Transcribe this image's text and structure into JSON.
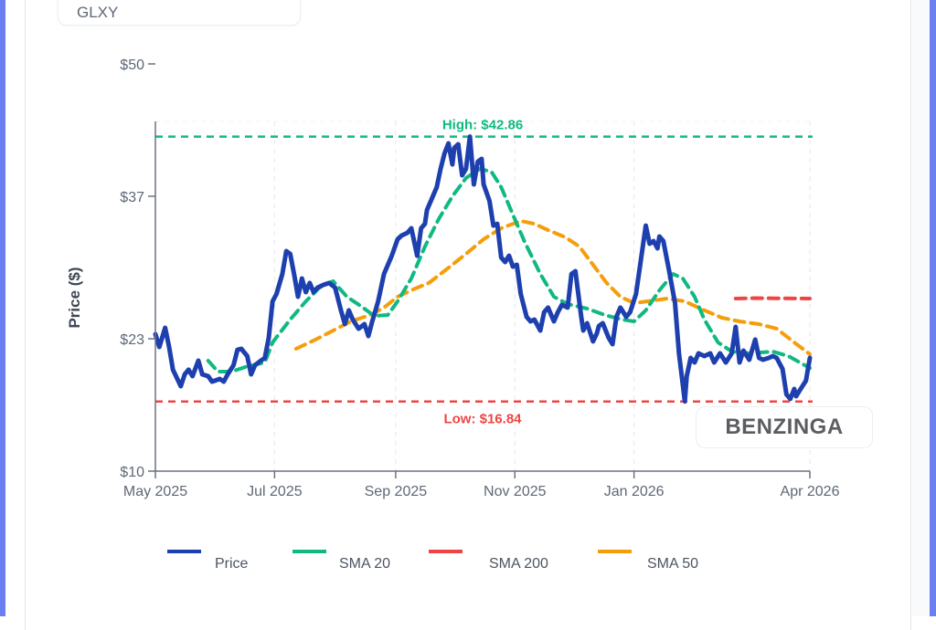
{
  "ticker": "GLXY",
  "watermark": "BENZINGA",
  "colors": {
    "price": "#1e40af",
    "sma20": "#10b981",
    "sma200": "#ef4444",
    "sma50": "#f59e0b",
    "high": "#10b981",
    "low": "#ef4444",
    "axis": "#6b7280",
    "text": "#5f6877"
  },
  "chart_data": {
    "type": "line",
    "title": "",
    "xlabel": "",
    "ylabel": "Price ($)",
    "ylim": [
      10,
      50
    ],
    "xlim": [
      "2025-05-01",
      "2026-04-01"
    ],
    "y_ticks": [
      {
        "value": 10,
        "label": "$10"
      },
      {
        "value": 23,
        "label": "$23"
      },
      {
        "value": 37,
        "label": "$37"
      },
      {
        "value": 50,
        "label": "$50"
      }
    ],
    "x_ticks": [
      {
        "date": "2025-05-01",
        "label": "May 2025"
      },
      {
        "date": "2025-07-01",
        "label": "Jul 2025"
      },
      {
        "date": "2025-09-01",
        "label": "Sep 2025"
      },
      {
        "date": "2025-11-01",
        "label": "Nov 2025"
      },
      {
        "date": "2026-01-01",
        "label": "Jan 2026"
      },
      {
        "date": "2026-04-01",
        "label": "Apr 2026"
      }
    ],
    "grid": "vertical dashed",
    "legend_position": "bottom",
    "annotations": [
      {
        "name": "high",
        "label": "High: $42.86",
        "value": 42.86,
        "style": "dashed"
      },
      {
        "name": "low",
        "label": "Low: $16.84",
        "value": 16.84,
        "style": "dashed"
      }
    ],
    "series": [
      {
        "name": "Price",
        "key": "price",
        "style": "solid",
        "points": [
          [
            "2025-05-01",
            23.45
          ],
          [
            "2025-05-03",
            22.2
          ],
          [
            "2025-05-06",
            24.08
          ],
          [
            "2025-05-08",
            22.2
          ],
          [
            "2025-05-10",
            19.96
          ],
          [
            "2025-05-14",
            18.34
          ],
          [
            "2025-05-16",
            19.51
          ],
          [
            "2025-05-18",
            19.96
          ],
          [
            "2025-05-20",
            19.33
          ],
          [
            "2025-05-23",
            20.85
          ],
          [
            "2025-05-25",
            19.51
          ],
          [
            "2025-05-28",
            19.33
          ],
          [
            "2025-05-30",
            18.79
          ],
          [
            "2025-06-03",
            19.06
          ],
          [
            "2025-06-05",
            18.79
          ],
          [
            "2025-06-07",
            19.51
          ],
          [
            "2025-06-10",
            20.4
          ],
          [
            "2025-06-12",
            21.93
          ],
          [
            "2025-06-14",
            22.02
          ],
          [
            "2025-06-17",
            21.3
          ],
          [
            "2025-06-19",
            19.51
          ],
          [
            "2025-06-21",
            20.4
          ],
          [
            "2025-06-24",
            20.85
          ],
          [
            "2025-06-26",
            21.12
          ],
          [
            "2025-06-28",
            23.09
          ],
          [
            "2025-06-30",
            26.68
          ],
          [
            "2025-07-02",
            27.4
          ],
          [
            "2025-07-05",
            29.37
          ],
          [
            "2025-07-07",
            31.61
          ],
          [
            "2025-07-09",
            31.34
          ],
          [
            "2025-07-11",
            29.37
          ],
          [
            "2025-07-13",
            27.13
          ],
          [
            "2025-07-15",
            28.92
          ],
          [
            "2025-07-17",
            27.58
          ],
          [
            "2025-07-19",
            28.48
          ],
          [
            "2025-07-21",
            27.58
          ],
          [
            "2025-07-23",
            28.03
          ],
          [
            "2025-07-26",
            28.3
          ],
          [
            "2025-07-29",
            28.48
          ],
          [
            "2025-08-01",
            28.03
          ],
          [
            "2025-08-04",
            25.79
          ],
          [
            "2025-08-06",
            24.44
          ],
          [
            "2025-08-08",
            25.79
          ],
          [
            "2025-08-10",
            24.89
          ],
          [
            "2025-08-13",
            23.99
          ],
          [
            "2025-08-16",
            24.44
          ],
          [
            "2025-08-18",
            23.27
          ],
          [
            "2025-08-20",
            24.71
          ],
          [
            "2025-08-21",
            25.34
          ],
          [
            "2025-08-23",
            26.68
          ],
          [
            "2025-08-26",
            29.37
          ],
          [
            "2025-08-30",
            31.16
          ],
          [
            "2025-09-02",
            32.78
          ],
          [
            "2025-09-04",
            33.14
          ],
          [
            "2025-09-07",
            33.41
          ],
          [
            "2025-09-09",
            33.86
          ],
          [
            "2025-09-12",
            31.16
          ],
          [
            "2025-09-14",
            33.86
          ],
          [
            "2025-09-16",
            34.3
          ],
          [
            "2025-09-17",
            35.65
          ],
          [
            "2025-09-19",
            36.55
          ],
          [
            "2025-09-22",
            37.89
          ],
          [
            "2025-09-24",
            39.69
          ],
          [
            "2025-09-26",
            41.21
          ],
          [
            "2025-09-28",
            42.2
          ],
          [
            "2025-09-30",
            40.13
          ],
          [
            "2025-10-01",
            41.75
          ],
          [
            "2025-10-03",
            42.11
          ],
          [
            "2025-10-05",
            39.06
          ],
          [
            "2025-10-07",
            39.69
          ],
          [
            "2025-10-09",
            42.86
          ],
          [
            "2025-10-11",
            38.16
          ],
          [
            "2025-10-13",
            40.4
          ],
          [
            "2025-10-15",
            40.67
          ],
          [
            "2025-10-16",
            38.16
          ],
          [
            "2025-10-19",
            36.55
          ],
          [
            "2025-10-21",
            34.12
          ],
          [
            "2025-10-23",
            34.3
          ],
          [
            "2025-10-25",
            30.99
          ],
          [
            "2025-10-27",
            30.54
          ],
          [
            "2025-10-29",
            31.16
          ],
          [
            "2025-10-31",
            30.09
          ],
          [
            "2025-11-02",
            30.27
          ],
          [
            "2025-11-04",
            27.4
          ],
          [
            "2025-11-07",
            25.16
          ],
          [
            "2025-11-09",
            24.71
          ],
          [
            "2025-11-11",
            24.89
          ],
          [
            "2025-11-14",
            23.81
          ],
          [
            "2025-11-16",
            25.61
          ],
          [
            "2025-11-18",
            26.06
          ],
          [
            "2025-11-21",
            24.71
          ],
          [
            "2025-11-23",
            25.61
          ],
          [
            "2025-11-25",
            26.33
          ],
          [
            "2025-11-28",
            26.06
          ],
          [
            "2025-11-30",
            29.37
          ],
          [
            "2025-12-02",
            29.64
          ],
          [
            "2025-12-05",
            25.16
          ],
          [
            "2025-12-06",
            23.81
          ],
          [
            "2025-12-08",
            24.53
          ],
          [
            "2025-12-11",
            22.74
          ],
          [
            "2025-12-13",
            23.54
          ],
          [
            "2025-12-14",
            24.26
          ],
          [
            "2025-12-16",
            24.53
          ],
          [
            "2025-12-19",
            23.09
          ],
          [
            "2025-12-21",
            22.47
          ],
          [
            "2025-12-23",
            25.16
          ],
          [
            "2025-12-25",
            26.06
          ],
          [
            "2025-12-28",
            25.16
          ],
          [
            "2025-12-30",
            25.61
          ],
          [
            "2026-01-02",
            27.4
          ],
          [
            "2026-01-04",
            30.09
          ],
          [
            "2026-01-07",
            34.12
          ],
          [
            "2026-01-09",
            32.33
          ],
          [
            "2026-01-11",
            32.6
          ],
          [
            "2026-01-13",
            31.88
          ],
          [
            "2026-01-14",
            33.05
          ],
          [
            "2026-01-16",
            32.6
          ],
          [
            "2026-01-19",
            29.64
          ],
          [
            "2026-01-22",
            26.5
          ],
          [
            "2026-01-24",
            21.57
          ],
          [
            "2026-01-26",
            18.43
          ],
          [
            "2026-01-27",
            16.84
          ],
          [
            "2026-01-28",
            19.33
          ],
          [
            "2026-01-30",
            21.12
          ],
          [
            "2026-02-01",
            20.67
          ],
          [
            "2026-02-03",
            21.57
          ],
          [
            "2026-02-06",
            21.3
          ],
          [
            "2026-02-09",
            21.57
          ],
          [
            "2026-02-11",
            20.67
          ],
          [
            "2026-02-14",
            21.57
          ],
          [
            "2026-02-17",
            20.67
          ],
          [
            "2026-02-20",
            21.57
          ],
          [
            "2026-02-22",
            24.17
          ],
          [
            "2026-02-24",
            20.67
          ],
          [
            "2026-02-26",
            21.84
          ],
          [
            "2026-03-01",
            20.94
          ],
          [
            "2026-03-04",
            22.92
          ],
          [
            "2026-03-06",
            21.12
          ],
          [
            "2026-03-08",
            20.94
          ],
          [
            "2026-03-11",
            21.12
          ],
          [
            "2026-03-13",
            21.3
          ],
          [
            "2026-03-15",
            21.12
          ],
          [
            "2026-03-18",
            20.04
          ],
          [
            "2026-03-20",
            17.53
          ],
          [
            "2026-03-22",
            17.09
          ],
          [
            "2026-03-24",
            18.07
          ],
          [
            "2026-03-25",
            17.35
          ],
          [
            "2026-03-27",
            17.98
          ],
          [
            "2026-03-30",
            18.88
          ],
          [
            "2026-04-01",
            21.12
          ]
        ]
      },
      {
        "name": "SMA 20",
        "key": "sma20",
        "style": "dashed",
        "points": [
          [
            "2025-05-28",
            20.85
          ],
          [
            "2025-06-02",
            19.78
          ],
          [
            "2025-06-09",
            19.78
          ],
          [
            "2025-06-16",
            20.22
          ],
          [
            "2025-06-26",
            20.67
          ],
          [
            "2025-06-30",
            22.65
          ],
          [
            "2025-07-09",
            24.89
          ],
          [
            "2025-07-17",
            26.68
          ],
          [
            "2025-07-24",
            28.03
          ],
          [
            "2025-07-31",
            28.66
          ],
          [
            "2025-08-07",
            27.13
          ],
          [
            "2025-08-14",
            26.23
          ],
          [
            "2025-08-21",
            25.25
          ],
          [
            "2025-08-28",
            25.34
          ],
          [
            "2025-09-02",
            26.68
          ],
          [
            "2025-09-09",
            28.92
          ],
          [
            "2025-09-16",
            32.06
          ],
          [
            "2025-09-23",
            34.75
          ],
          [
            "2025-09-30",
            36.99
          ],
          [
            "2025-10-07",
            38.79
          ],
          [
            "2025-10-14",
            39.69
          ],
          [
            "2025-10-20",
            39.42
          ],
          [
            "2025-10-25",
            37.89
          ],
          [
            "2025-10-31",
            35.2
          ],
          [
            "2025-11-06",
            32.51
          ],
          [
            "2025-11-14",
            29.37
          ],
          [
            "2025-11-21",
            27.13
          ],
          [
            "2025-11-28",
            26.41
          ],
          [
            "2025-12-08",
            25.96
          ],
          [
            "2025-12-17",
            25.34
          ],
          [
            "2025-12-26",
            24.89
          ],
          [
            "2026-01-01",
            24.71
          ],
          [
            "2026-01-07",
            25.79
          ],
          [
            "2026-01-14",
            27.76
          ],
          [
            "2026-01-21",
            29.37
          ],
          [
            "2026-01-26",
            28.92
          ],
          [
            "2026-02-01",
            27.13
          ],
          [
            "2026-02-06",
            24.89
          ],
          [
            "2026-02-13",
            22.65
          ],
          [
            "2026-02-20",
            21.75
          ],
          [
            "2026-03-01",
            21.57
          ],
          [
            "2026-03-13",
            21.75
          ],
          [
            "2026-03-21",
            21.3
          ],
          [
            "2026-04-01",
            20.13
          ]
        ]
      },
      {
        "name": "SMA 200",
        "key": "sma200",
        "style": "dashed",
        "points": [
          [
            "2026-02-22",
            26.95
          ],
          [
            "2026-03-04",
            27.0
          ],
          [
            "2026-03-15",
            26.98
          ],
          [
            "2026-04-01",
            26.95
          ]
        ]
      },
      {
        "name": "SMA 50",
        "key": "sma50",
        "style": "dashed",
        "points": [
          [
            "2025-07-12",
            22.02
          ],
          [
            "2025-07-22",
            22.92
          ],
          [
            "2025-07-31",
            23.81
          ],
          [
            "2025-08-09",
            24.71
          ],
          [
            "2025-08-19",
            25.34
          ],
          [
            "2025-08-26",
            26.06
          ],
          [
            "2025-09-02",
            27.13
          ],
          [
            "2025-09-11",
            27.94
          ],
          [
            "2025-09-18",
            28.48
          ],
          [
            "2025-09-27",
            29.82
          ],
          [
            "2025-10-07",
            31.34
          ],
          [
            "2025-10-16",
            32.78
          ],
          [
            "2025-10-25",
            33.86
          ],
          [
            "2025-11-04",
            34.57
          ],
          [
            "2025-11-11",
            34.3
          ],
          [
            "2025-11-18",
            33.68
          ],
          [
            "2025-11-27",
            32.96
          ],
          [
            "2025-12-04",
            32.06
          ],
          [
            "2025-12-11",
            30.27
          ],
          [
            "2025-12-18",
            28.48
          ],
          [
            "2025-12-25",
            27.13
          ],
          [
            "2026-01-01",
            26.5
          ],
          [
            "2026-01-08",
            26.68
          ],
          [
            "2026-01-18",
            26.95
          ],
          [
            "2026-01-27",
            26.68
          ],
          [
            "2026-02-06",
            25.79
          ],
          [
            "2026-02-15",
            25.07
          ],
          [
            "2026-02-24",
            24.71
          ],
          [
            "2026-03-06",
            24.44
          ],
          [
            "2026-03-15",
            23.99
          ],
          [
            "2026-03-24",
            22.65
          ],
          [
            "2026-04-01",
            21.48
          ]
        ]
      }
    ],
    "legend": [
      {
        "label": "Price",
        "key": "price"
      },
      {
        "label": "SMA 20",
        "key": "sma20"
      },
      {
        "label": "SMA 200",
        "key": "sma200"
      },
      {
        "label": "SMA 50",
        "key": "sma50"
      }
    ]
  }
}
